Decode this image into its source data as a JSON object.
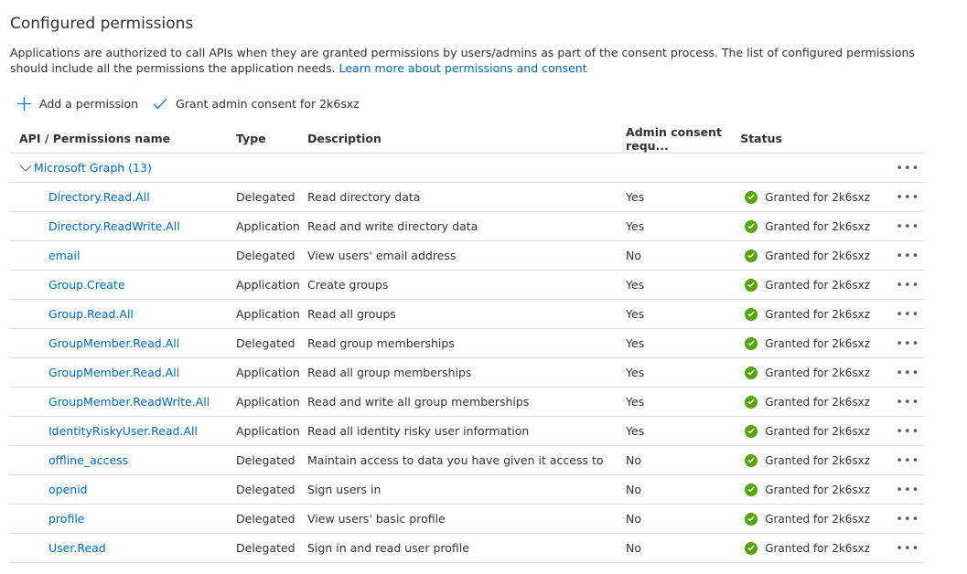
{
  "title": "Configured permissions",
  "intro": "Applications are authorized to call APIs when they are granted permissions by users/admins as part of the consent process. The list of configured permissions should include all the permissions the application needs.",
  "learn_more": "Learn more about permissions and consent",
  "toolbar": {
    "add": "Add a permission",
    "grant": "Grant admin consent for 2k6sxz"
  },
  "columns": [
    "API / Permissions name",
    "Type",
    "Description",
    "Admin consent requ...",
    "Status"
  ],
  "group": {
    "label": "Microsoft Graph (13)"
  },
  "colors": {
    "link": "#0067b8",
    "success": "#57a300"
  },
  "rows": [
    {
      "name": "Directory.Read.All",
      "type": "Delegated",
      "desc": "Read directory data",
      "admin": "Yes",
      "status": "Granted for 2k6sxz"
    },
    {
      "name": "Directory.ReadWrite.All",
      "type": "Application",
      "desc": "Read and write directory data",
      "admin": "Yes",
      "status": "Granted for 2k6sxz"
    },
    {
      "name": "email",
      "type": "Delegated",
      "desc": "View users' email address",
      "admin": "No",
      "status": "Granted for 2k6sxz"
    },
    {
      "name": "Group.Create",
      "type": "Application",
      "desc": "Create groups",
      "admin": "Yes",
      "status": "Granted for 2k6sxz"
    },
    {
      "name": "Group.Read.All",
      "type": "Application",
      "desc": "Read all groups",
      "admin": "Yes",
      "status": "Granted for 2k6sxz"
    },
    {
      "name": "GroupMember.Read.All",
      "type": "Delegated",
      "desc": "Read group memberships",
      "admin": "Yes",
      "status": "Granted for 2k6sxz"
    },
    {
      "name": "GroupMember.Read.All",
      "type": "Application",
      "desc": "Read all group memberships",
      "admin": "Yes",
      "status": "Granted for 2k6sxz"
    },
    {
      "name": "GroupMember.ReadWrite.All",
      "type": "Application",
      "desc": "Read and write all group memberships",
      "admin": "Yes",
      "status": "Granted for 2k6sxz"
    },
    {
      "name": "IdentityRiskyUser.Read.All",
      "type": "Application",
      "desc": "Read all identity risky user information",
      "admin": "Yes",
      "status": "Granted for 2k6sxz"
    },
    {
      "name": "offline_access",
      "type": "Delegated",
      "desc": "Maintain access to data you have given it access to",
      "admin": "No",
      "status": "Granted for 2k6sxz"
    },
    {
      "name": "openid",
      "type": "Delegated",
      "desc": "Sign users in",
      "admin": "No",
      "status": "Granted for 2k6sxz"
    },
    {
      "name": "profile",
      "type": "Delegated",
      "desc": "View users' basic profile",
      "admin": "No",
      "status": "Granted for 2k6sxz"
    },
    {
      "name": "User.Read",
      "type": "Delegated",
      "desc": "Sign in and read user profile",
      "admin": "No",
      "status": "Granted for 2k6sxz"
    }
  ],
  "more_label": "•••"
}
